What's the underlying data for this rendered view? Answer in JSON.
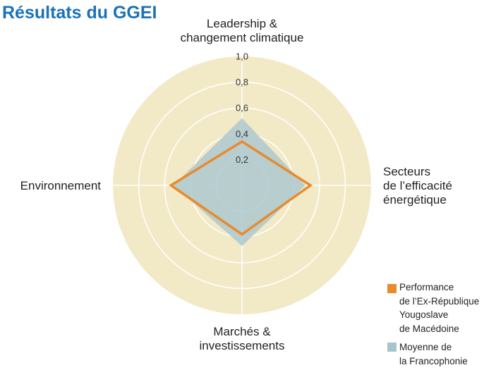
{
  "chart_data": {
    "type": "radar",
    "title": "Résultats du GGEI",
    "axes": [
      "Leadership &\nchangement climatique",
      "Secteurs\nde l’efficacité\nénergétique",
      "Marchés &\ninvestissements",
      "Environnement"
    ],
    "rlim": [
      0,
      1.0
    ],
    "ticks": [
      0.2,
      0.4,
      0.6,
      0.8,
      1.0
    ],
    "tick_labels": [
      "0,2",
      "0,4",
      "0,6",
      "0,8",
      "1,0"
    ],
    "grid": true,
    "legend_position": "bottom-right",
    "series": [
      {
        "name": "Performance\nde l’Ex-République\nYougoslave\nde Macédoine",
        "values": [
          0.34,
          0.53,
          0.38,
          0.55
        ],
        "color": "#e98a2c",
        "filled": false
      },
      {
        "name": "Moyenne de\nla Francophonie",
        "values": [
          0.52,
          0.49,
          0.47,
          0.53
        ],
        "color": "#a7c5cf",
        "filled": true
      }
    ]
  },
  "colors": {
    "title": "#1a72b8",
    "background_disk": "#f2e9c6",
    "grid": "#ffffff"
  }
}
